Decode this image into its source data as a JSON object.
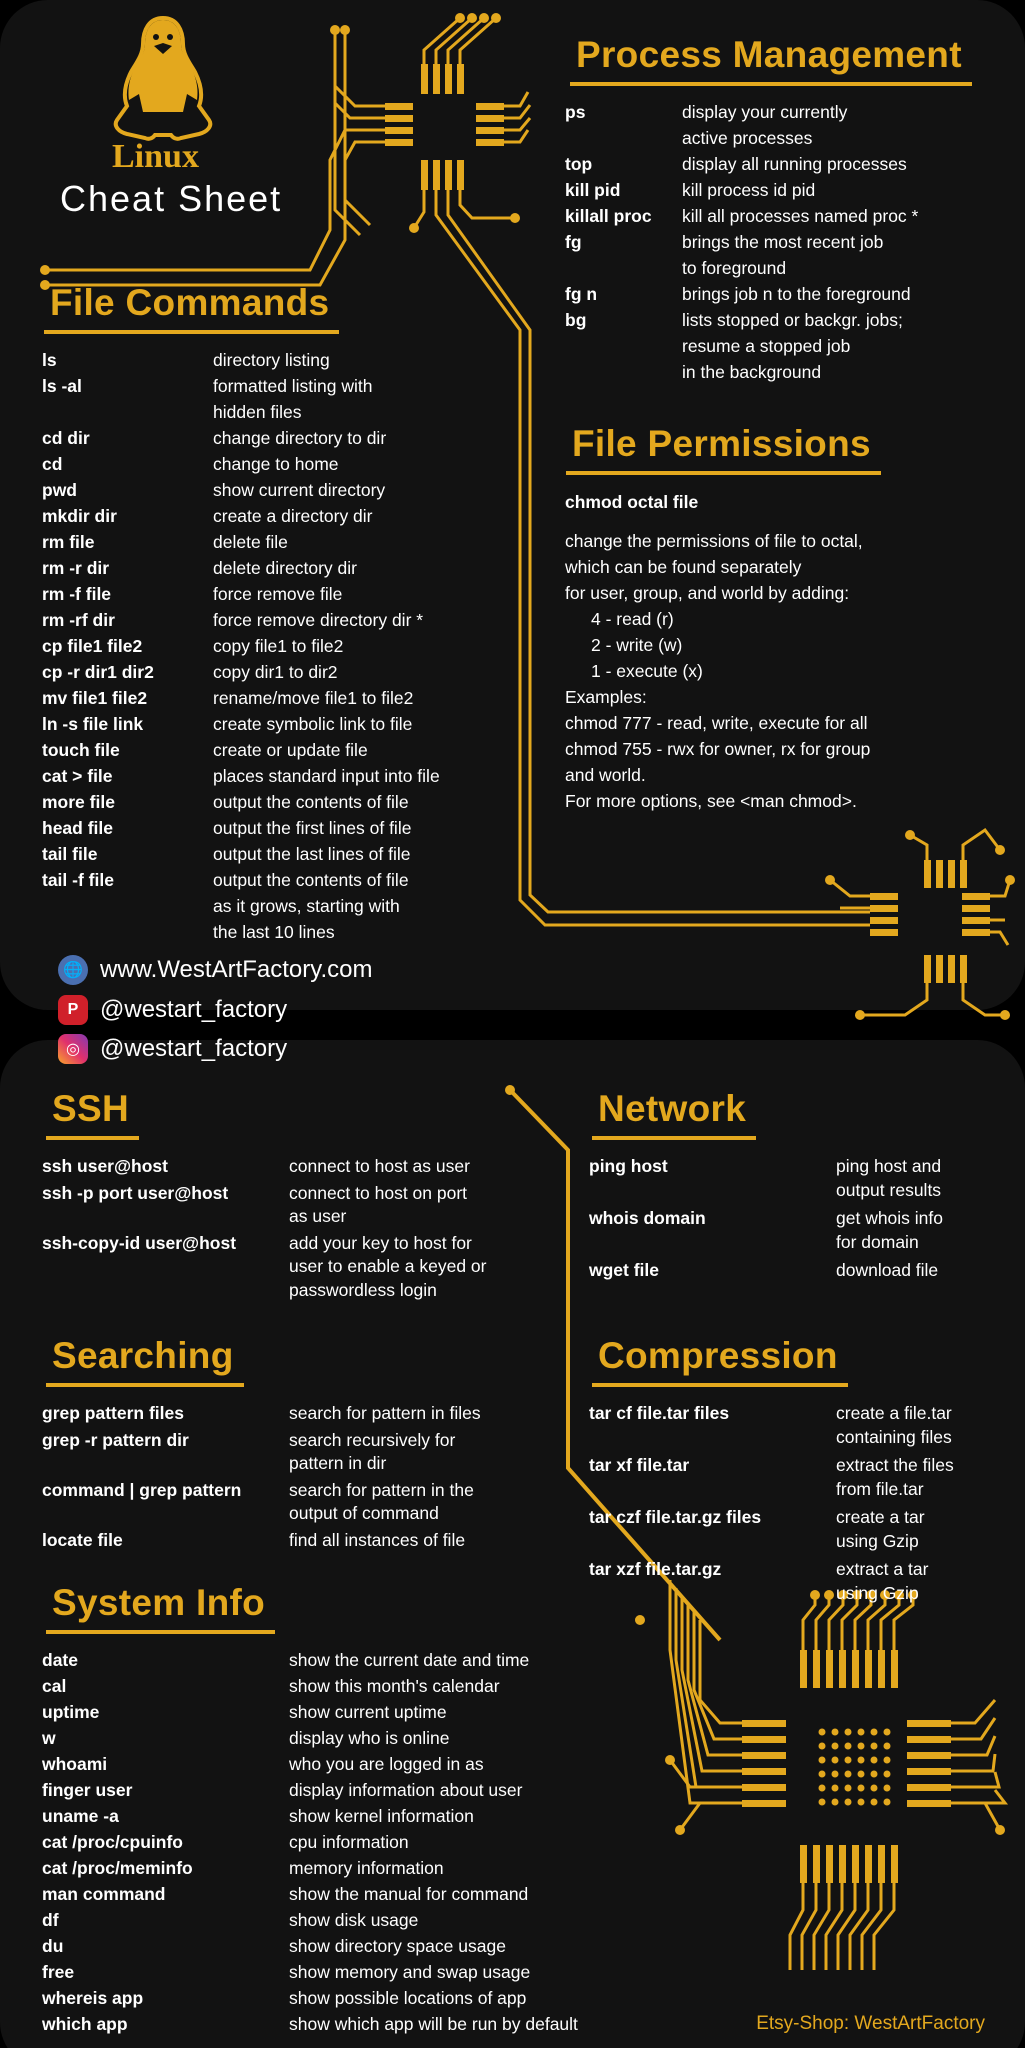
{
  "logo": {
    "title": "Linux",
    "subtitle": "Cheat Sheet",
    "icon": "tux-penguin-icon"
  },
  "colors": {
    "accent": "#e3a81e",
    "background": "#121212",
    "text": "#ffffff"
  },
  "social": [
    {
      "icon": "globe-icon",
      "text": "www.WestArtFactory.com",
      "color": "#4a6fb0"
    },
    {
      "icon": "pinterest-icon",
      "text": "@westart_factory",
      "color": "#d0202a"
    },
    {
      "icon": "instagram-icon",
      "text": "@westart_factory",
      "color": "#d6249f"
    }
  ],
  "footer": "Etsy-Shop: WestArtFactory",
  "sections": [
    {
      "id": "file-commands",
      "title": "File Commands",
      "items": [
        {
          "cmd": "ls",
          "desc": [
            "directory listing"
          ]
        },
        {
          "cmd": "ls -al",
          "desc": [
            "formatted listing with",
            "hidden files"
          ]
        },
        {
          "cmd": "cd dir",
          "desc": [
            "change directory to dir"
          ]
        },
        {
          "cmd": "cd",
          "desc": [
            "change to home"
          ]
        },
        {
          "cmd": "pwd",
          "desc": [
            "show current directory"
          ]
        },
        {
          "cmd": "mkdir dir",
          "desc": [
            "create a directory dir"
          ]
        },
        {
          "cmd": "rm file",
          "desc": [
            "delete file"
          ]
        },
        {
          "cmd": "rm -r dir",
          "desc": [
            "delete directory dir"
          ]
        },
        {
          "cmd": "rm -f file",
          "desc": [
            "force remove file"
          ]
        },
        {
          "cmd": "rm -rf dir",
          "desc": [
            "force remove directory dir *"
          ]
        },
        {
          "cmd": "cp file1 file2",
          "desc": [
            "copy file1 to file2"
          ]
        },
        {
          "cmd": "cp -r dir1 dir2",
          "desc": [
            "copy dir1 to dir2"
          ]
        },
        {
          "cmd": "mv file1 file2",
          "desc": [
            "rename/move file1 to file2"
          ]
        },
        {
          "cmd": "ln -s file link",
          "desc": [
            "create symbolic link to file"
          ]
        },
        {
          "cmd": "touch file",
          "desc": [
            "create or update file"
          ]
        },
        {
          "cmd": "cat > file",
          "desc": [
            "places standard input into file"
          ]
        },
        {
          "cmd": "more file",
          "desc": [
            "output the contents of file"
          ]
        },
        {
          "cmd": "head file",
          "desc": [
            "output the first lines of file"
          ]
        },
        {
          "cmd": "tail file",
          "desc": [
            "output the last lines of file"
          ]
        },
        {
          "cmd": "tail -f file",
          "desc": [
            "output the contents of file",
            "as it grows, starting with",
            "the last 10 lines"
          ]
        }
      ]
    },
    {
      "id": "process-management",
      "title": "Process Management",
      "items": [
        {
          "cmd": "ps",
          "desc": [
            "display your currently",
            "active processes"
          ]
        },
        {
          "cmd": "top",
          "desc": [
            "display all running processes"
          ]
        },
        {
          "cmd": "kill pid",
          "desc": [
            "kill process id pid"
          ]
        },
        {
          "cmd": "killall proc",
          "desc": [
            "kill all processes named proc *"
          ]
        },
        {
          "cmd": "fg",
          "desc": [
            "brings the most recent job",
            "to foreground"
          ]
        },
        {
          "cmd": "fg n",
          "desc": [
            "brings job n to the foreground"
          ]
        },
        {
          "cmd": "bg",
          "desc": [
            "lists stopped or backgr. jobs;",
            "resume a stopped job",
            "in the background"
          ]
        }
      ]
    },
    {
      "id": "ssh",
      "title": "SSH",
      "items": [
        {
          "cmd": "ssh user@host",
          "desc": [
            "connect to host as user"
          ]
        },
        {
          "cmd": "ssh -p port user@host",
          "desc": [
            "connect to host on port",
            "as user"
          ]
        },
        {
          "cmd": "ssh-copy-id user@host",
          "desc": [
            "add your key to host for",
            "user to enable a keyed or",
            "passwordless login"
          ]
        }
      ]
    },
    {
      "id": "network",
      "title": "Network",
      "items": [
        {
          "cmd": "ping host",
          "desc": [
            "ping host and",
            "output results"
          ]
        },
        {
          "cmd": "whois domain",
          "desc": [
            "get whois info",
            "for domain"
          ]
        },
        {
          "cmd": "wget file",
          "desc": [
            "download file"
          ]
        }
      ]
    },
    {
      "id": "searching",
      "title": "Searching",
      "items": [
        {
          "cmd": "grep pattern files",
          "desc": [
            "search for pattern in files"
          ]
        },
        {
          "cmd": "grep -r pattern dir",
          "desc": [
            "search recursively for",
            "pattern in dir"
          ]
        },
        {
          "cmd": "command | grep pattern",
          "desc": [
            "search for pattern in the",
            "output of command"
          ]
        },
        {
          "cmd": "locate file",
          "desc": [
            "find all instances of file"
          ]
        }
      ]
    },
    {
      "id": "compression",
      "title": "Compression",
      "items": [
        {
          "cmd": "tar cf file.tar files",
          "desc": [
            "create a file.tar",
            "containing files"
          ]
        },
        {
          "cmd": "tar xf file.tar",
          "desc": [
            "extract the files",
            "from file.tar"
          ]
        },
        {
          "cmd": "tar czf file.tar.gz files",
          "desc": [
            "create a tar",
            "using Gzip"
          ]
        },
        {
          "cmd": "tar xzf file.tar.gz",
          "desc": [
            "extract a tar",
            "using Gzip"
          ]
        }
      ]
    },
    {
      "id": "system-info",
      "title": "System Info",
      "items": [
        {
          "cmd": "date",
          "desc": [
            "show the current date and time"
          ]
        },
        {
          "cmd": "cal",
          "desc": [
            "show this month's calendar"
          ]
        },
        {
          "cmd": "uptime",
          "desc": [
            "show current uptime"
          ]
        },
        {
          "cmd": "w",
          "desc": [
            "display who is online"
          ]
        },
        {
          "cmd": "whoami",
          "desc": [
            "who you are logged in as"
          ]
        },
        {
          "cmd": "finger user",
          "desc": [
            "display information about user"
          ]
        },
        {
          "cmd": "uname -a",
          "desc": [
            "show kernel information"
          ]
        },
        {
          "cmd": "cat /proc/cpuinfo",
          "desc": [
            "cpu information"
          ]
        },
        {
          "cmd": "cat /proc/meminfo",
          "desc": [
            "memory information"
          ]
        },
        {
          "cmd": "man command",
          "desc": [
            "show the manual for command"
          ]
        },
        {
          "cmd": "df",
          "desc": [
            "show disk usage"
          ]
        },
        {
          "cmd": "du",
          "desc": [
            "show directory space usage"
          ]
        },
        {
          "cmd": "free",
          "desc": [
            "show memory and swap usage"
          ]
        },
        {
          "cmd": "whereis app",
          "desc": [
            "show possible locations of app"
          ]
        },
        {
          "cmd": "which app",
          "desc": [
            "show which app will be run by default"
          ]
        }
      ]
    }
  ],
  "permissions": {
    "title": "File Permissions",
    "command": "chmod octal file",
    "lines": [
      "change the permissions of file to octal,",
      "which can be found separately",
      "for user, group, and world by adding:",
      "4 - read (r)",
      "2 - write (w)",
      "1 - execute (x)",
      "Examples:",
      "chmod 777 - read, write, execute for all",
      "chmod 755 - rwx for owner, rx for group",
      "and world.",
      "For more options, see <man chmod>."
    ]
  }
}
